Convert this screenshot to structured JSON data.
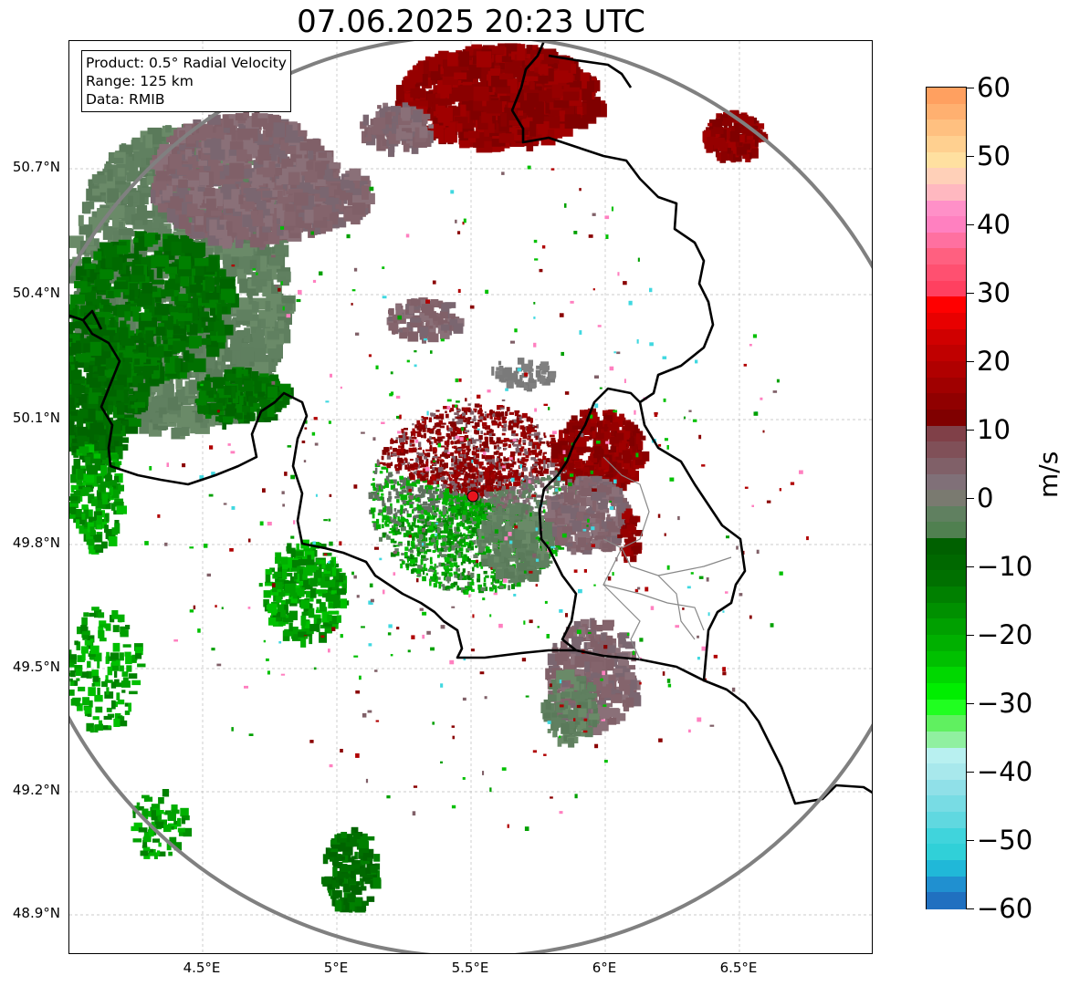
{
  "title": "07.06.2025 20:23 UTC",
  "info_box": {
    "product": "Product: 0.5° Radial Velocity",
    "range": "Range: 125 km",
    "data": "Data: RMIB"
  },
  "axes": {
    "lat_labels": [
      "50.7°N",
      "50.4°N",
      "50.1°N",
      "49.8°N",
      "49.5°N",
      "49.2°N",
      "48.9°N"
    ],
    "lon_labels": [
      "4.5°E",
      "5°E",
      "5.5°E",
      "6°E",
      "6.5°E"
    ],
    "lat_range": [
      48.8,
      50.99
    ],
    "lon_range": [
      4.0,
      7.0
    ],
    "grid": true
  },
  "radar_site": {
    "lat": 49.91,
    "lon": 5.5,
    "color": "#e8141e"
  },
  "range_ring_color": "#808080",
  "colorbar": {
    "unit": "m/s",
    "min": -60,
    "max": 60,
    "tick_labels": [
      "60",
      "50",
      "40",
      "30",
      "20",
      "10",
      "0",
      "−10",
      "−20",
      "−30",
      "−40",
      "−50",
      "−60"
    ],
    "colors_top_to_bottom": [
      "#ffa060",
      "#ffb070",
      "#ffc080",
      "#ffd090",
      "#ffe0a0",
      "#ffd0b8",
      "#ffb8c0",
      "#ff90c8",
      "#ff80c0",
      "#ff70a0",
      "#ff6080",
      "#ff5070",
      "#ff4060",
      "#ff0000",
      "#e80000",
      "#d00000",
      "#c00000",
      "#b00000",
      "#a00000",
      "#900000",
      "#800000",
      "#804048",
      "#805058",
      "#806068",
      "#807078",
      "#7a7a70",
      "#608060",
      "#508050",
      "#006000",
      "#006800",
      "#007000",
      "#008000",
      "#009000",
      "#00a000",
      "#00b000",
      "#00c000",
      "#00d800",
      "#00ee00",
      "#20ff20",
      "#60f060",
      "#90f0a0",
      "#b8f0f0",
      "#a8e8ec",
      "#90e0e8",
      "#78dce4",
      "#60d8e0",
      "#40d4dc",
      "#30d0d8",
      "#20b8d8",
      "#2090d0",
      "#2070c0"
    ]
  }
}
